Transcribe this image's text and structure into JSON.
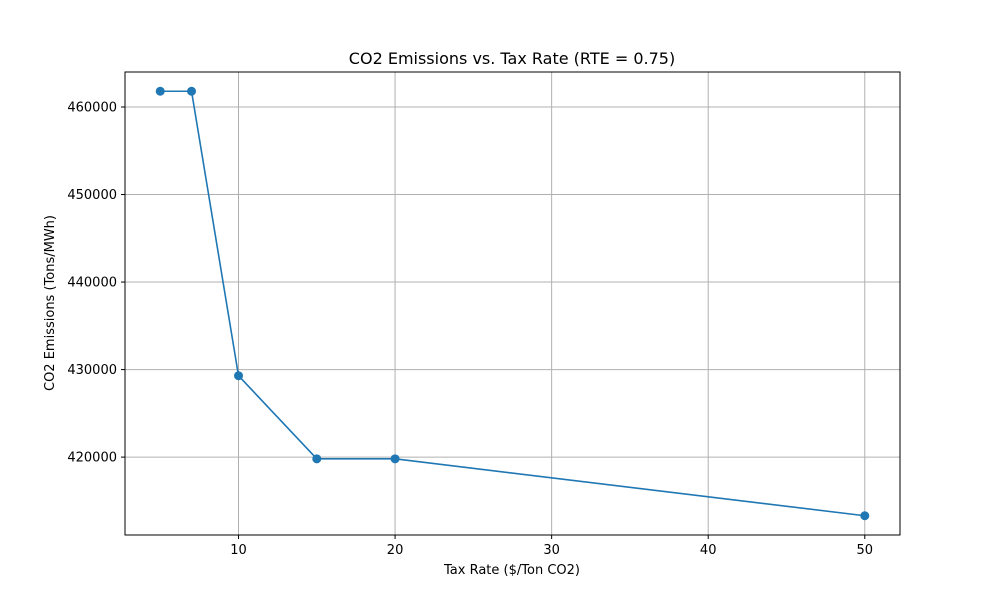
{
  "chart_data": {
    "type": "line",
    "title": "CO2 Emissions vs. Tax Rate (RTE = 0.75)",
    "xlabel": "Tax Rate ($/Ton CO2)",
    "ylabel": "CO2 Emissions (Tons/MWh)",
    "xlim": [
      2.75,
      52.25
    ],
    "ylim": [
      411100,
      464000
    ],
    "xticks": [
      10,
      20,
      30,
      40,
      50
    ],
    "yticks": [
      420000,
      430000,
      440000,
      450000,
      460000
    ],
    "grid": true,
    "series": [
      {
        "color": "#1f77b4",
        "marker": "circle",
        "x": [
          5,
          7,
          10,
          15,
          20,
          50
        ],
        "y": [
          461800,
          461800,
          429300,
          419800,
          419800,
          413300
        ]
      }
    ]
  }
}
